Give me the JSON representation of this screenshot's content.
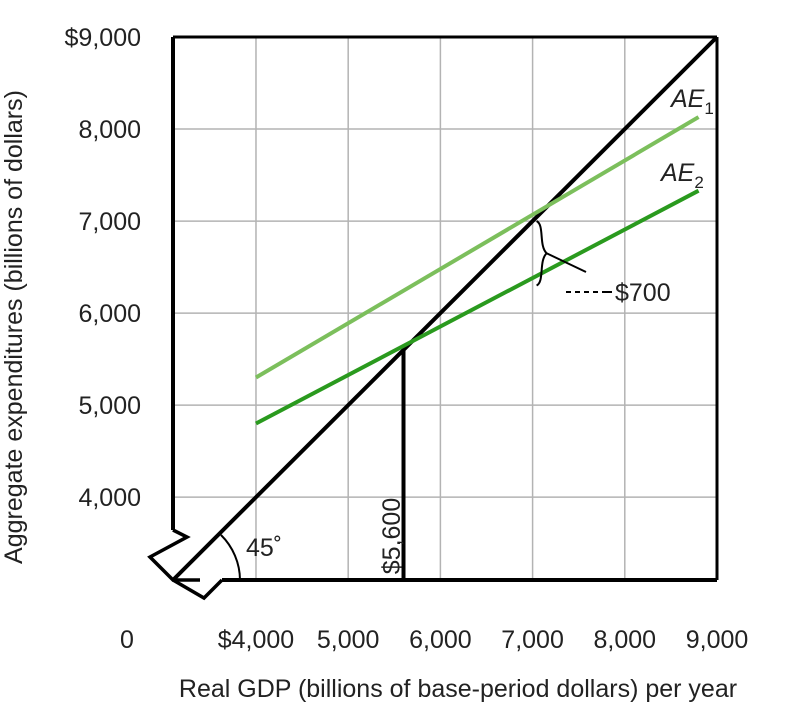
{
  "chart_data": {
    "type": "line",
    "xlabel": "Real GDP (billions of base-period dollars) per year",
    "ylabel": "Aggregate expenditures (billions of dollars)",
    "xlim": [
      3100,
      9000
    ],
    "ylim": [
      3100,
      9000
    ],
    "x_ticks": [
      {
        "value": 4000,
        "label": "$4,000"
      },
      {
        "value": 5000,
        "label": "5,000"
      },
      {
        "value": 6000,
        "label": "6,000"
      },
      {
        "value": 7000,
        "label": "7,000"
      },
      {
        "value": 8000,
        "label": "8,000"
      },
      {
        "value": 9000,
        "label": "9,000"
      }
    ],
    "y_ticks": [
      {
        "value": 4000,
        "label": "4,000"
      },
      {
        "value": 5000,
        "label": "5,000"
      },
      {
        "value": 6000,
        "label": "6,000"
      },
      {
        "value": 7000,
        "label": "7,000"
      },
      {
        "value": 8000,
        "label": "8,000"
      },
      {
        "value": 9000,
        "label": "$9,000"
      }
    ],
    "origin_label": "0",
    "grid": true,
    "axis_break": true,
    "series": [
      {
        "name": "",
        "role": "45-degree line",
        "color": "#000000",
        "points": [
          [
            3100,
            3100
          ],
          [
            9000,
            9000
          ]
        ]
      },
      {
        "name": "AE",
        "subscript": "1",
        "color": "#7cbf5c",
        "points": [
          [
            4000,
            5300
          ],
          [
            8800,
            8130
          ]
        ]
      },
      {
        "name": "AE",
        "subscript": "2",
        "color": "#2a9a1e",
        "points": [
          [
            4000,
            4800
          ],
          [
            8800,
            7330
          ]
        ]
      }
    ],
    "annotations": {
      "angle_label": "45˚",
      "equilibrium_label": "$5,600",
      "equilibrium": {
        "x": 5600,
        "y": 5600
      },
      "gap_label": "$700",
      "gap": {
        "x": 7000,
        "y_top": 7000,
        "y_bottom": 6300
      }
    }
  }
}
